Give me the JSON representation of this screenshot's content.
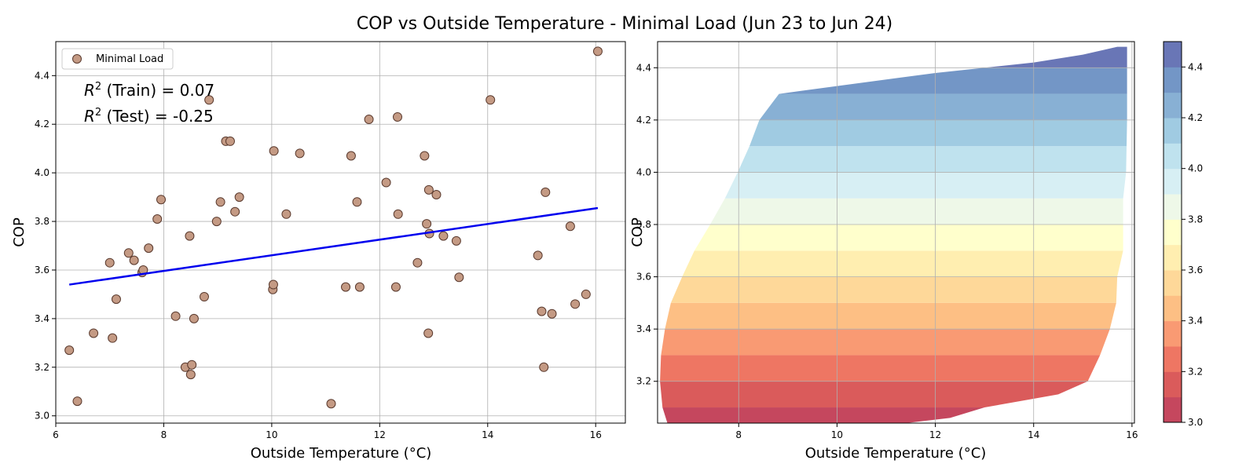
{
  "title": "COP vs Outside Temperature - Minimal Load (Jun 23 to Jun 24)",
  "chart_data": [
    {
      "type": "scatter",
      "xlabel": "Outside Temperature (°C)",
      "ylabel": "COP",
      "xlim": [
        6.0,
        16.55
      ],
      "ylim": [
        2.97,
        4.54
      ],
      "xticks": [
        "6",
        "8",
        "10",
        "12",
        "14",
        "16"
      ],
      "yticks": [
        "3.0",
        "3.2",
        "3.4",
        "3.6",
        "3.8",
        "4.0",
        "4.2",
        "4.4"
      ],
      "grid": true,
      "legend": {
        "position": "top-left",
        "entries": [
          "Minimal Load"
        ]
      },
      "marker_color": "#c49a84",
      "line_color": "#0000ee",
      "annotations": [
        {
          "sup": "2",
          "label": "(Train) = 0.07"
        },
        {
          "sup": "2",
          "label": "(Test) = -0.25"
        }
      ],
      "series": [
        {
          "name": "Minimal Load",
          "points": [
            [
              6.25,
              3.27
            ],
            [
              6.4,
              3.06
            ],
            [
              6.7,
              3.34
            ],
            [
              7.0,
              3.63
            ],
            [
              7.05,
              3.32
            ],
            [
              7.12,
              3.48
            ],
            [
              7.35,
              3.67
            ],
            [
              7.45,
              3.64
            ],
            [
              7.6,
              3.59
            ],
            [
              7.62,
              3.6
            ],
            [
              7.72,
              3.69
            ],
            [
              7.88,
              3.81
            ],
            [
              7.95,
              3.89
            ],
            [
              8.22,
              3.41
            ],
            [
              8.4,
              3.2
            ],
            [
              8.48,
              3.74
            ],
            [
              8.5,
              3.17
            ],
            [
              8.52,
              3.21
            ],
            [
              8.56,
              3.4
            ],
            [
              8.75,
              3.49
            ],
            [
              8.84,
              4.3
            ],
            [
              8.98,
              3.8
            ],
            [
              9.05,
              3.88
            ],
            [
              9.15,
              4.13
            ],
            [
              9.23,
              4.13
            ],
            [
              9.32,
              3.84
            ],
            [
              9.4,
              3.9
            ],
            [
              10.02,
              3.52
            ],
            [
              10.03,
              3.54
            ],
            [
              10.04,
              4.09
            ],
            [
              10.27,
              3.83
            ],
            [
              10.52,
              4.08
            ],
            [
              11.1,
              3.05
            ],
            [
              11.37,
              3.53
            ],
            [
              11.47,
              4.07
            ],
            [
              11.58,
              3.88
            ],
            [
              11.63,
              3.53
            ],
            [
              11.8,
              4.22
            ],
            [
              12.12,
              3.96
            ],
            [
              12.3,
              3.53
            ],
            [
              12.33,
              4.23
            ],
            [
              12.34,
              3.83
            ],
            [
              12.7,
              3.63
            ],
            [
              12.83,
              4.07
            ],
            [
              12.87,
              3.79
            ],
            [
              12.9,
              3.34
            ],
            [
              12.91,
              3.93
            ],
            [
              12.92,
              3.75
            ],
            [
              13.05,
              3.91
            ],
            [
              13.18,
              3.74
            ],
            [
              13.42,
              3.72
            ],
            [
              13.47,
              3.57
            ],
            [
              14.05,
              4.3
            ],
            [
              14.93,
              3.66
            ],
            [
              15.0,
              3.43
            ],
            [
              15.04,
              3.2
            ],
            [
              15.07,
              3.92
            ],
            [
              15.19,
              3.42
            ],
            [
              15.53,
              3.78
            ],
            [
              15.62,
              3.46
            ],
            [
              15.82,
              3.5
            ],
            [
              16.04,
              4.5
            ]
          ]
        }
      ],
      "fit_line": {
        "x": [
          6.25,
          16.04
        ],
        "y": [
          3.54,
          3.855
        ]
      }
    },
    {
      "type": "contourf",
      "xlabel": "Outside Temperature (°C)",
      "ylabel": "COP",
      "xlim": [
        6.35,
        16.05
      ],
      "ylim": [
        3.04,
        4.5
      ],
      "xticks": [
        "8",
        "10",
        "12",
        "14",
        "16"
      ],
      "yticks": [
        "3.2",
        "3.4",
        "3.6",
        "3.8",
        "4.0",
        "4.2",
        "4.4"
      ],
      "grid": true,
      "colormap": "RdYlBu",
      "levels": [
        3.0,
        3.1,
        3.2,
        3.3,
        3.4,
        3.5,
        3.6,
        3.7,
        3.8,
        3.9,
        4.0,
        4.1,
        4.2,
        4.3,
        4.4,
        4.5
      ],
      "colors": [
        "#c5475e",
        "#da5b5b",
        "#ee7663",
        "#f99a73",
        "#fdbf84",
        "#fed899",
        "#ffeeb0",
        "#ffffcc",
        "#eef8e8",
        "#d7eff4",
        "#bfe2ee",
        "#a0cbe2",
        "#88b0d4",
        "#7396c6",
        "#6976b6"
      ],
      "colorbar_ticks": [
        "3.0",
        "3.2",
        "3.4",
        "3.6",
        "3.8",
        "4.0",
        "4.2",
        "4.4"
      ],
      "boundary_left": [
        [
          3.04,
          6.55
        ],
        [
          3.1,
          6.45
        ],
        [
          3.2,
          6.4
        ],
        [
          3.3,
          6.42
        ],
        [
          3.4,
          6.5
        ],
        [
          3.5,
          6.62
        ],
        [
          3.6,
          6.85
        ],
        [
          3.7,
          7.1
        ],
        [
          3.8,
          7.42
        ],
        [
          3.9,
          7.72
        ],
        [
          4.0,
          7.98
        ],
        [
          4.1,
          8.22
        ],
        [
          4.2,
          8.42
        ],
        [
          4.3,
          8.82
        ],
        [
          4.33,
          10.0
        ],
        [
          4.38,
          12.0
        ],
        [
          4.42,
          14.0
        ],
        [
          4.45,
          15.0
        ],
        [
          4.48,
          15.7
        ]
      ],
      "boundary_right": [
        [
          4.48,
          15.9
        ],
        [
          4.2,
          15.9
        ],
        [
          4.0,
          15.88
        ],
        [
          3.9,
          15.82
        ],
        [
          3.8,
          15.82
        ],
        [
          3.7,
          15.82
        ],
        [
          3.6,
          15.7
        ],
        [
          3.5,
          15.68
        ],
        [
          3.4,
          15.55
        ],
        [
          3.3,
          15.35
        ],
        [
          3.2,
          15.1
        ],
        [
          3.15,
          14.5
        ],
        [
          3.1,
          13.0
        ],
        [
          3.06,
          12.3
        ],
        [
          3.04,
          11.4
        ]
      ]
    }
  ]
}
